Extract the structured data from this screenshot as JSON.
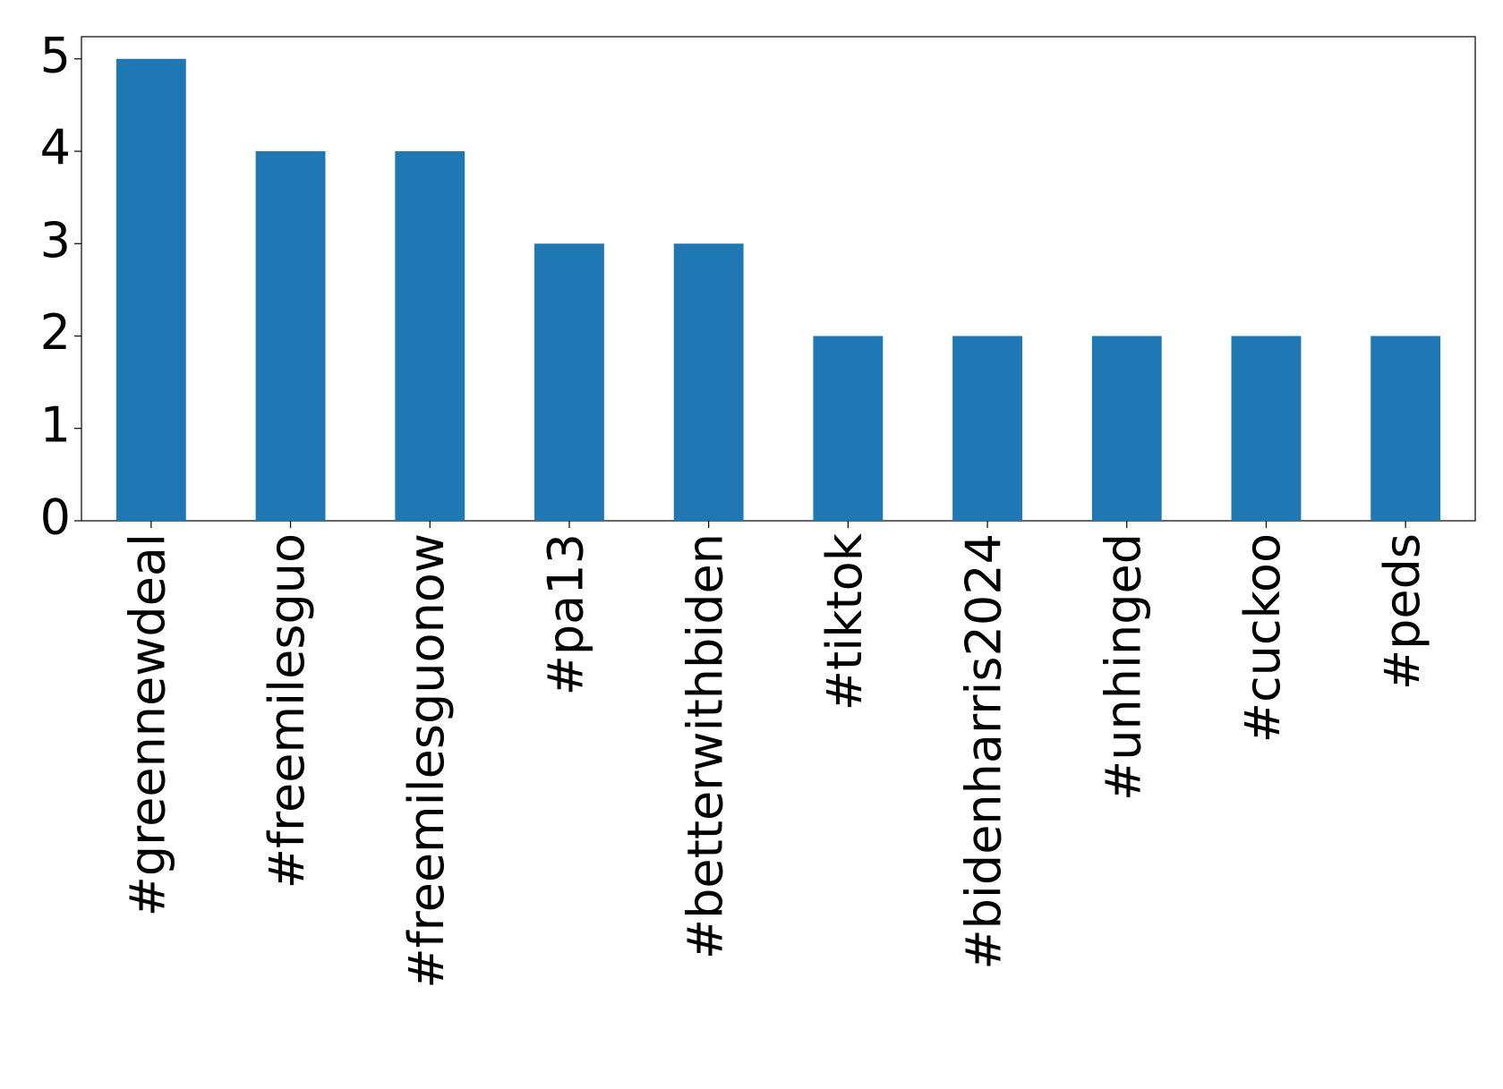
{
  "chart_data": {
    "type": "bar",
    "categories": [
      "#greennewdeal",
      "#freemilesguo",
      "#freemilesguonow",
      "#pa13",
      "#betterwithbiden",
      "#tiktok",
      "#bidenharris2024",
      "#unhinged",
      "#cuckoo",
      "#peds"
    ],
    "values": [
      5,
      4,
      4,
      3,
      3,
      2,
      2,
      2,
      2,
      2
    ],
    "color": "#1f77b4",
    "ylim": [
      0,
      5.24
    ],
    "yticks": [
      0,
      1,
      2,
      3,
      4,
      5
    ],
    "grid": false
  }
}
